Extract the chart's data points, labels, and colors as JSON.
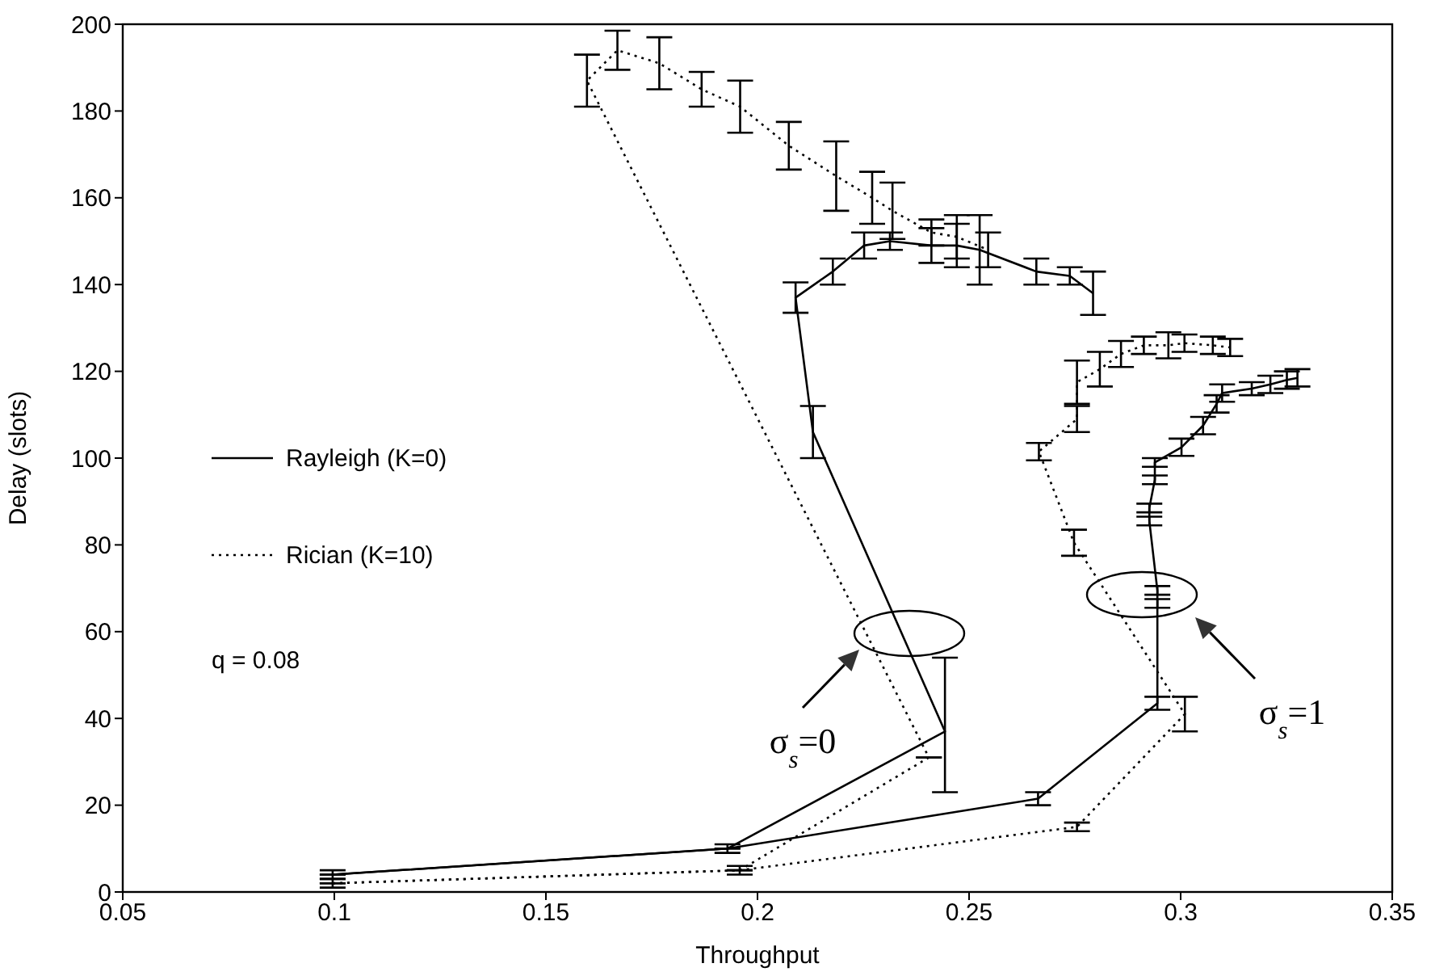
{
  "chart_data": {
    "type": "line",
    "xlabel": "Throughput",
    "ylabel": "Delay (slots)",
    "xlim": [
      0.05,
      0.35
    ],
    "xticks": [
      0.05,
      0.1,
      0.15,
      0.2,
      0.25,
      0.3,
      0.35
    ],
    "ylim": [
      0,
      200
    ],
    "yticks": [
      0,
      20,
      40,
      60,
      80,
      100,
      120,
      140,
      160,
      180,
      200
    ],
    "grid": false,
    "legend": "left",
    "marker": "none",
    "annotations": [
      "q = 0.08",
      "σ$_{s}$=0",
      "σ$_{s}$=1"
    ],
    "series": [
      {
        "name": "Rayleigh (K=0)",
        "color": "#000000",
        "line_style": "solid",
        "x": [
          0.0996,
          0.1929,
          0.2443,
          0.2131,
          0.209,
          0.2178,
          0.2252,
          0.2313,
          0.2411,
          0.2471,
          0.2525,
          0.2659,
          0.2738,
          0.2793
        ],
        "values": [
          4,
          10,
          37,
          106,
          137,
          143,
          149,
          150,
          149,
          149,
          148,
          143,
          142,
          138
        ],
        "errors": [
          1,
          1,
          [
            23,
            54
          ],
          6,
          3.5,
          3,
          3,
          2,
          4,
          5,
          8,
          3,
          2,
          5
        ]
      },
      {
        "name": "Rician (K=10)",
        "color": "#000000",
        "line_style": "dotted",
        "x": [
          0.0996,
          0.1958,
          0.2405,
          0.1597,
          0.1669,
          0.1768,
          0.1868,
          0.1959,
          0.2074,
          0.2186,
          0.2271,
          0.2319,
          0.2411,
          0.2471,
          0.2545
        ],
        "values": [
          2,
          5,
          31,
          187,
          194,
          191,
          185,
          181,
          172,
          165,
          160,
          157,
          152,
          151,
          148
        ],
        "errors": [
          1,
          1,
          null,
          6,
          4.5,
          6,
          4,
          6,
          5.5,
          8,
          6,
          6.5,
          3,
          5,
          4
        ]
      },
      {
        "color": "#000000",
        "line_style": "solid",
        "x": [
          0.0996,
          0.1929,
          0.2663,
          0.2945,
          0.2945,
          0.2945,
          0.2926,
          0.2926,
          0.2939,
          0.2939,
          0.3002,
          0.3053,
          0.3085,
          0.3098,
          0.3168,
          0.3212,
          0.3251,
          0.3276
        ],
        "values": [
          4,
          10,
          21.5,
          43.5,
          66.5,
          69.5,
          85.5,
          88.5,
          95,
          99,
          102.5,
          107.5,
          112.5,
          115,
          116,
          117,
          118,
          118.5
        ],
        "errors": [
          null,
          null,
          1.5,
          1.5,
          1,
          1,
          1,
          1,
          1,
          1,
          2,
          2,
          2,
          2,
          1.5,
          2,
          2,
          2
        ]
      },
      {
        "color": "#000000",
        "line_style": "dotted",
        "x": [
          0.0996,
          0.1958,
          0.2755,
          0.301,
          0.2748,
          0.2665,
          0.2755,
          0.2755,
          0.2809,
          0.2859,
          0.2913,
          0.2971,
          0.3009,
          0.3076,
          0.3117
        ],
        "values": [
          2,
          5,
          15,
          41,
          80.5,
          101.5,
          109,
          117.5,
          120.5,
          124,
          126,
          126,
          126.5,
          126,
          125.5
        ],
        "errors": [
          null,
          null,
          1,
          4,
          3,
          2,
          3,
          5,
          4,
          3,
          2,
          3,
          2,
          2,
          2
        ]
      }
    ]
  }
}
